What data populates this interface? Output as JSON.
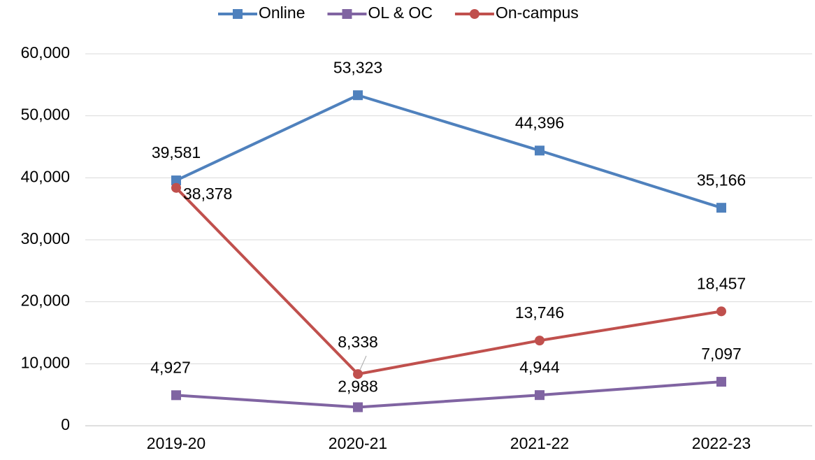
{
  "chart_data": {
    "type": "line",
    "categories": [
      "2019-20",
      "2020-21",
      "2021-22",
      "2022-23"
    ],
    "series": [
      {
        "name": "Online",
        "color": "#4f81bd",
        "marker": "square",
        "values": [
          39581,
          53323,
          44396,
          35166
        ],
        "value_labels": [
          "39,581",
          "53,323",
          "44,396",
          "35,166"
        ]
      },
      {
        "name": "OL & OC",
        "color": "#8064a2",
        "marker": "square",
        "values": [
          4927,
          2988,
          4944,
          7097
        ],
        "value_labels": [
          "4,927",
          "2,988",
          "4,944",
          "7,097"
        ]
      },
      {
        "name": "On-campus",
        "color": "#c0504d",
        "marker": "circle",
        "values": [
          38378,
          8338,
          13746,
          18457
        ],
        "value_labels": [
          "38,378",
          "8,338",
          "13,746",
          "18,457"
        ]
      }
    ],
    "ylim": [
      0,
      60000
    ],
    "yticks": [
      0,
      {
        "value": 10000,
        "label": "10,000"
      },
      {
        "value": 20000,
        "label": "20,000"
      },
      {
        "value": 30000,
        "label": "30,000"
      },
      {
        "value": 40000,
        "label": "40,000"
      },
      {
        "value": 50000,
        "label": "50,000"
      },
      {
        "value": 60000,
        "label": "60,000"
      }
    ],
    "grid": true,
    "legend": "top"
  }
}
